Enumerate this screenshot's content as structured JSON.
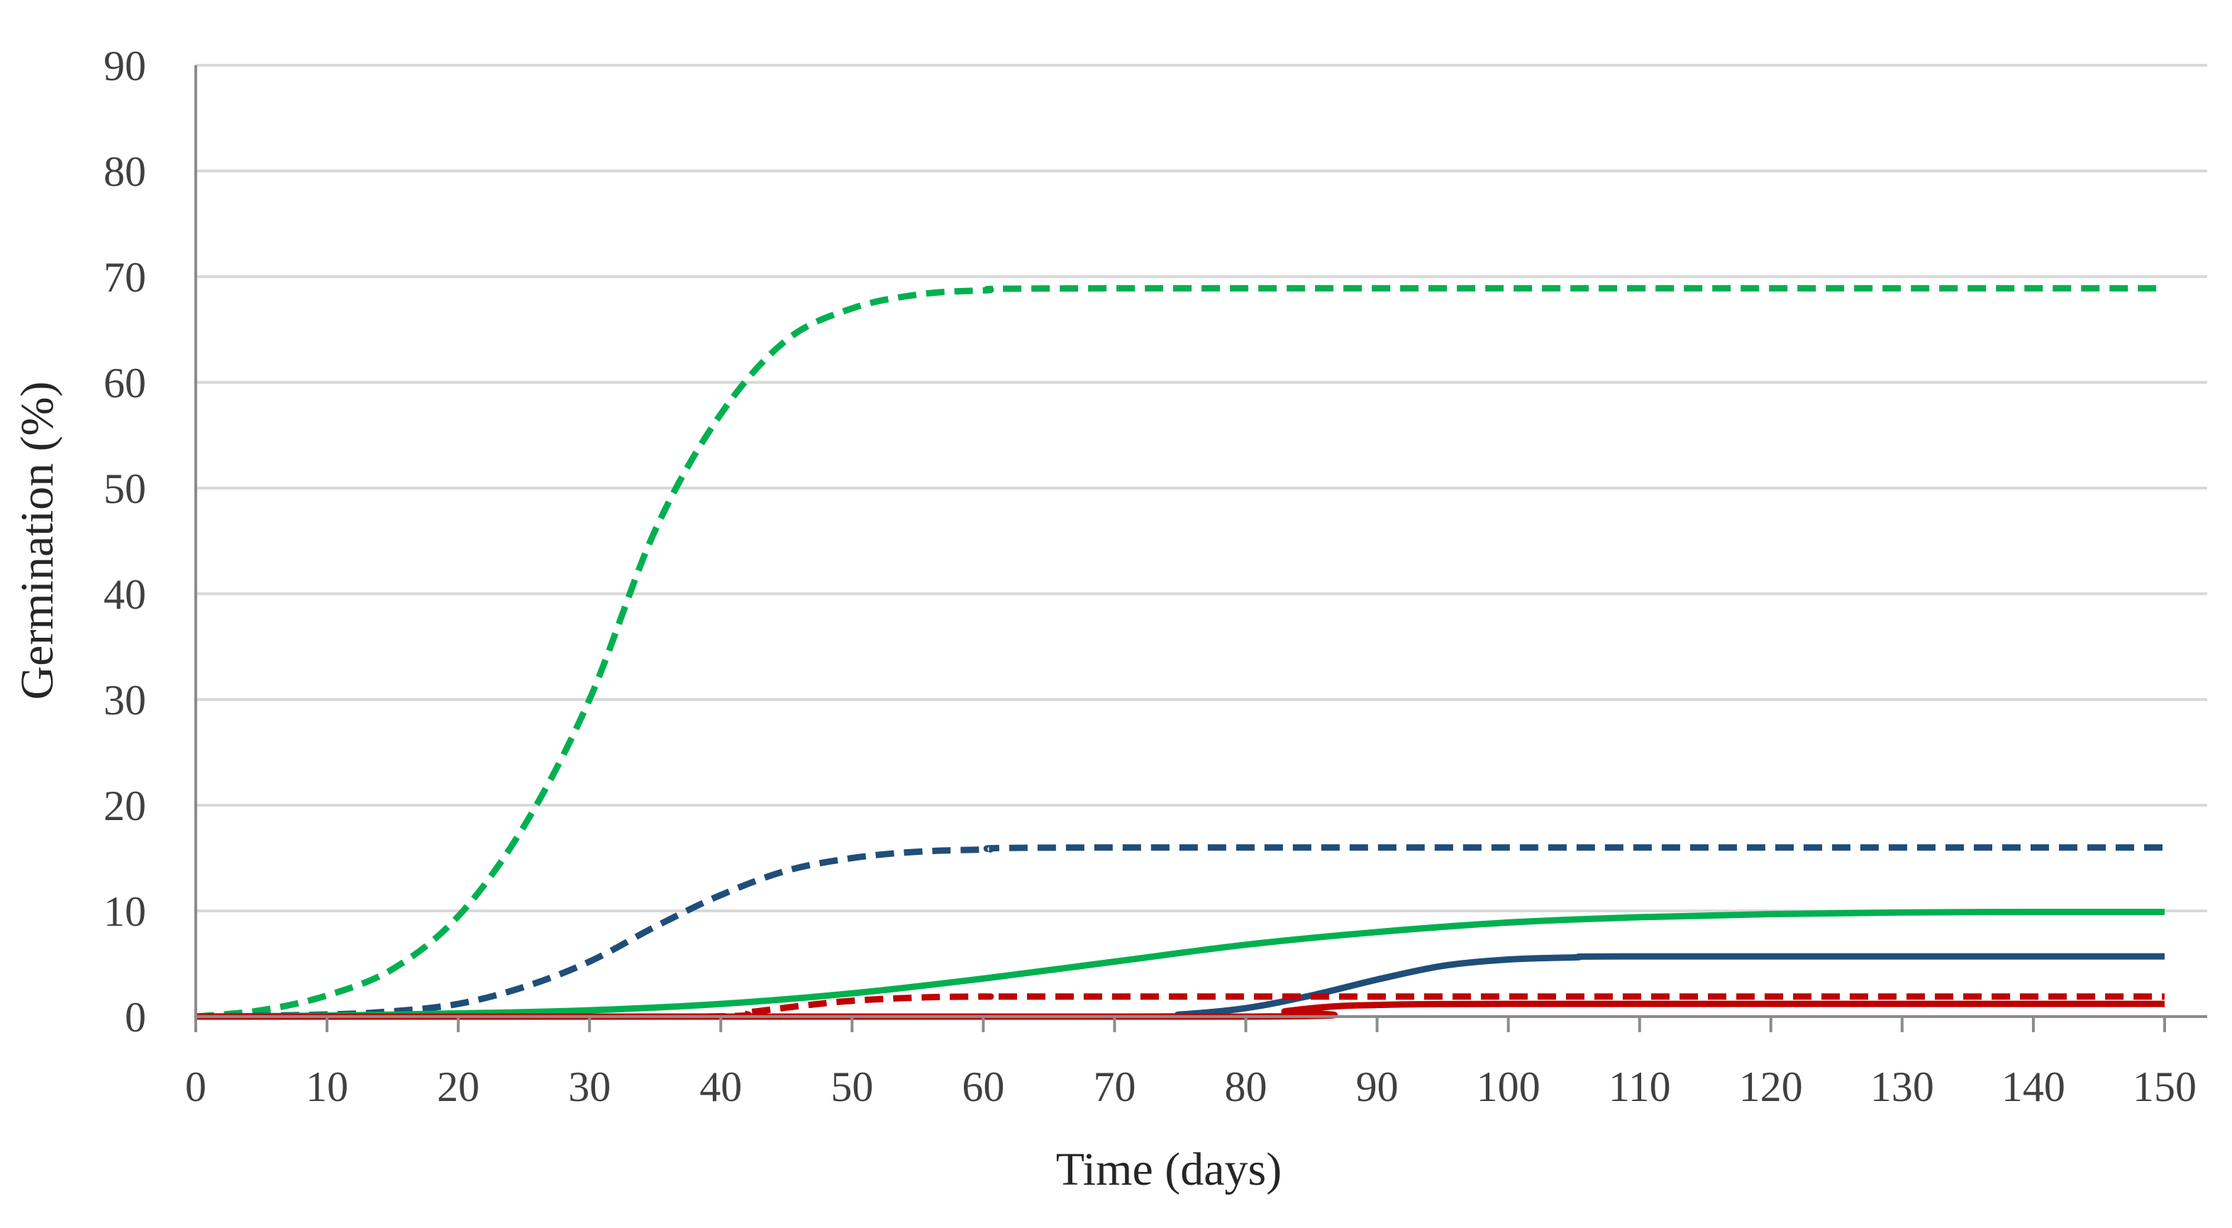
{
  "chart_data": {
    "type": "line",
    "title": "",
    "xlabel": "Time (days)",
    "ylabel": "Germination (%)",
    "xlim": [
      0,
      150
    ],
    "ylim": [
      0,
      90
    ],
    "x_ticks": [
      0,
      10,
      20,
      30,
      40,
      50,
      60,
      70,
      80,
      90,
      100,
      110,
      120,
      130,
      140,
      150
    ],
    "y_ticks": [
      0,
      10,
      20,
      30,
      40,
      50,
      60,
      70,
      80,
      90
    ],
    "grid": "horizontal",
    "legend": "none",
    "series": [
      {
        "name": "green-dashed",
        "color": "#00b050",
        "dash": "dashed",
        "points": [
          [
            0,
            0
          ],
          [
            5,
            0.6
          ],
          [
            10,
            2
          ],
          [
            15,
            4.5
          ],
          [
            20,
            9.5
          ],
          [
            25,
            18
          ],
          [
            30,
            30
          ],
          [
            35,
            46
          ],
          [
            40,
            57
          ],
          [
            45,
            64
          ],
          [
            50,
            67
          ],
          [
            55,
            68.3
          ],
          [
            60,
            68.7
          ],
          [
            70,
            68.9
          ],
          [
            150,
            68.9
          ]
        ]
      },
      {
        "name": "blue-dashed",
        "color": "#1f4e79",
        "dash": "dashed",
        "points": [
          [
            0,
            0
          ],
          [
            10,
            0.2
          ],
          [
            15,
            0.5
          ],
          [
            20,
            1.2
          ],
          [
            25,
            2.8
          ],
          [
            30,
            5.2
          ],
          [
            35,
            8.5
          ],
          [
            40,
            11.5
          ],
          [
            45,
            13.8
          ],
          [
            50,
            15
          ],
          [
            55,
            15.6
          ],
          [
            60,
            15.8
          ],
          [
            70,
            16
          ],
          [
            150,
            16
          ]
        ]
      },
      {
        "name": "green-solid",
        "color": "#00b050",
        "dash": "solid",
        "points": [
          [
            0,
            0
          ],
          [
            10,
            0.1
          ],
          [
            20,
            0.3
          ],
          [
            30,
            0.6
          ],
          [
            40,
            1.2
          ],
          [
            50,
            2.2
          ],
          [
            60,
            3.6
          ],
          [
            70,
            5.2
          ],
          [
            80,
            6.8
          ],
          [
            90,
            8
          ],
          [
            100,
            8.9
          ],
          [
            110,
            9.4
          ],
          [
            120,
            9.7
          ],
          [
            130,
            9.85
          ],
          [
            140,
            9.9
          ],
          [
            150,
            9.9
          ]
        ]
      },
      {
        "name": "blue-solid",
        "color": "#1f4e79",
        "dash": "solid",
        "points": [
          [
            0,
            0
          ],
          [
            70,
            0
          ],
          [
            75,
            0.2
          ],
          [
            80,
            0.8
          ],
          [
            85,
            2
          ],
          [
            90,
            3.5
          ],
          [
            95,
            4.8
          ],
          [
            100,
            5.4
          ],
          [
            105,
            5.6
          ],
          [
            110,
            5.7
          ],
          [
            150,
            5.7
          ]
        ]
      },
      {
        "name": "red-dashed",
        "color": "#c00000",
        "dash": "dashed",
        "points": [
          [
            0,
            0
          ],
          [
            38,
            0
          ],
          [
            42,
            0.4
          ],
          [
            46,
            1
          ],
          [
            50,
            1.5
          ],
          [
            55,
            1.8
          ],
          [
            60,
            1.9
          ],
          [
            70,
            1.9
          ],
          [
            150,
            1.9
          ]
        ]
      },
      {
        "name": "red-solid",
        "color": "#c00000",
        "dash": "solid",
        "points": [
          [
            0,
            0
          ],
          [
            80,
            0
          ],
          [
            83,
            0.5
          ],
          [
            86,
            0.9
          ],
          [
            90,
            1.1
          ],
          [
            100,
            1.2
          ],
          [
            150,
            1.2
          ]
        ]
      }
    ]
  }
}
